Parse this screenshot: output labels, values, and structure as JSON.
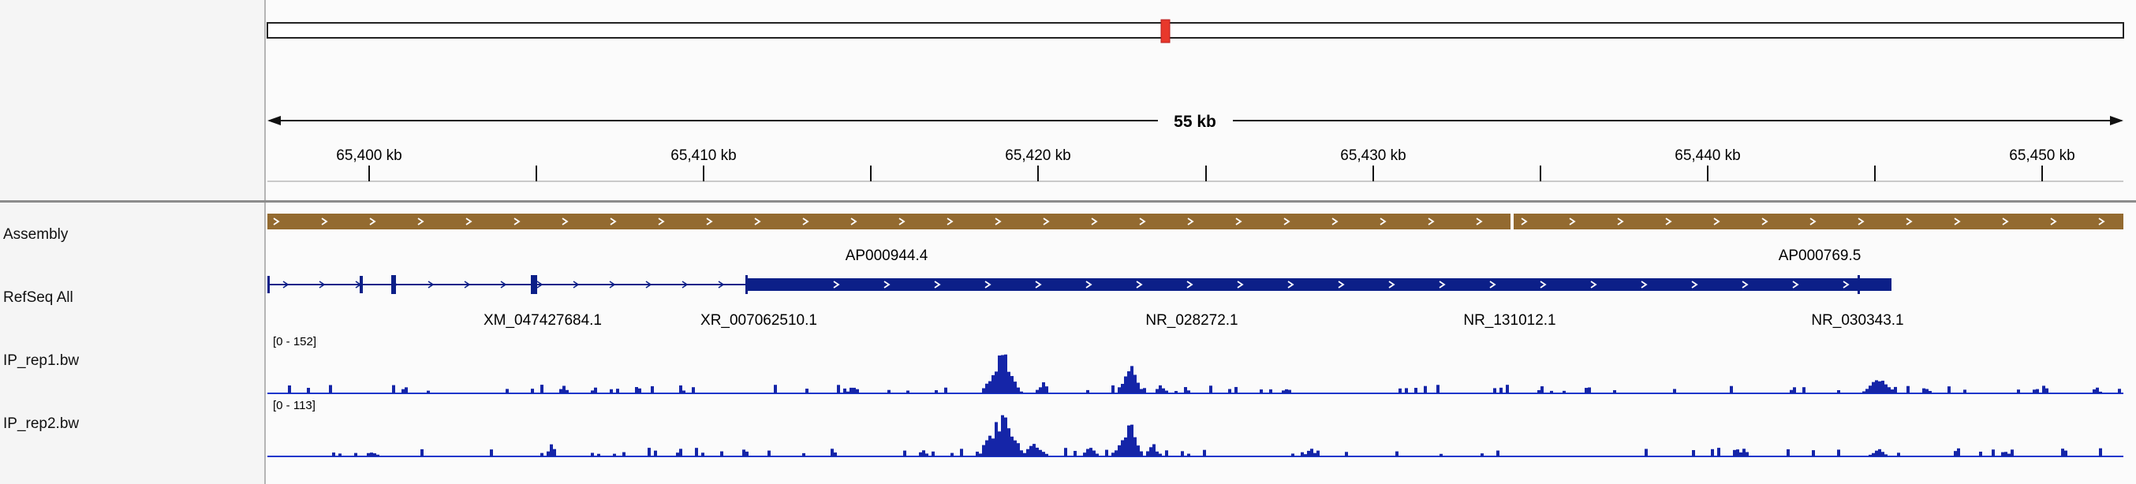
{
  "colors": {
    "assembly_bar": "#936a30",
    "refseq": "#0c1f88",
    "coverage": "#1525a8",
    "ideogram_marker": "#e8382b",
    "baseline": "#1a37cc"
  },
  "ruler": {
    "span_label": "55 kb",
    "ticks": [
      "65,400 kb",
      "65,410 kb",
      "65,420 kb",
      "65,430 kb",
      "65,440 kb",
      "65,450 kb"
    ]
  },
  "tracks": {
    "assembly": {
      "label": "Assembly",
      "features": [
        "AP000944.4",
        "AP000769.5"
      ]
    },
    "refseq": {
      "label": "RefSeq All",
      "genes": [
        "XM_047427684.1",
        "XR_007062510.1",
        "NR_028272.1",
        "NR_131012.1",
        "NR_030343.1"
      ]
    },
    "ip_rep1": {
      "label": "IP_rep1.bw",
      "range": "[0 - 152]",
      "max": 152
    },
    "ip_rep2": {
      "label": "IP_rep2.bw",
      "range": "[0 - 113]",
      "max": 113
    }
  }
}
